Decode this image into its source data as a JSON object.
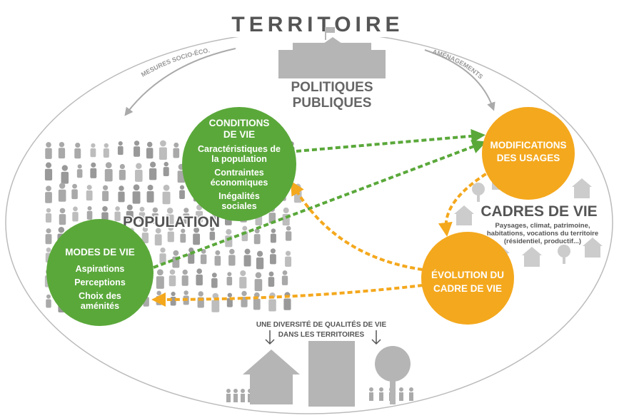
{
  "title": "TERRITOIRE",
  "arrows": {
    "left": "MESURES SOCIO-ÉCO.",
    "right": "AMÉNAGEMENTS"
  },
  "policy": [
    "POLITIQUES",
    "PUBLIQUES"
  ],
  "population": "POPULATION",
  "conditions": {
    "title": [
      "CONDITIONS",
      "DE VIE"
    ],
    "items": [
      [
        "Caractéristiques de",
        "la population"
      ],
      [
        "Contraintes",
        "économiques"
      ],
      [
        "Inégalités",
        "sociales"
      ]
    ]
  },
  "modes": {
    "title": [
      "MODES DE VIE"
    ],
    "items": [
      [
        "Aspirations"
      ],
      [
        "Perceptions"
      ],
      [
        "Choix des",
        "aménités"
      ]
    ]
  },
  "modifications": {
    "title": [
      "MODIFICATIONS",
      "DES USAGES"
    ]
  },
  "cadres": {
    "title": "CADRES DE VIE",
    "desc": [
      "Paysages, climat, patrimoine,",
      "habitations, vocations du territoire",
      "(résidentiel, productif...)"
    ]
  },
  "evolution": {
    "title": [
      "ÉVOLUTION DU",
      "CADRE DE VIE"
    ]
  },
  "diversity": [
    "UNE DIVERSITÉ DE QUALITÉS DE VIE",
    "DANS LES TERRITOIRES"
  ]
}
